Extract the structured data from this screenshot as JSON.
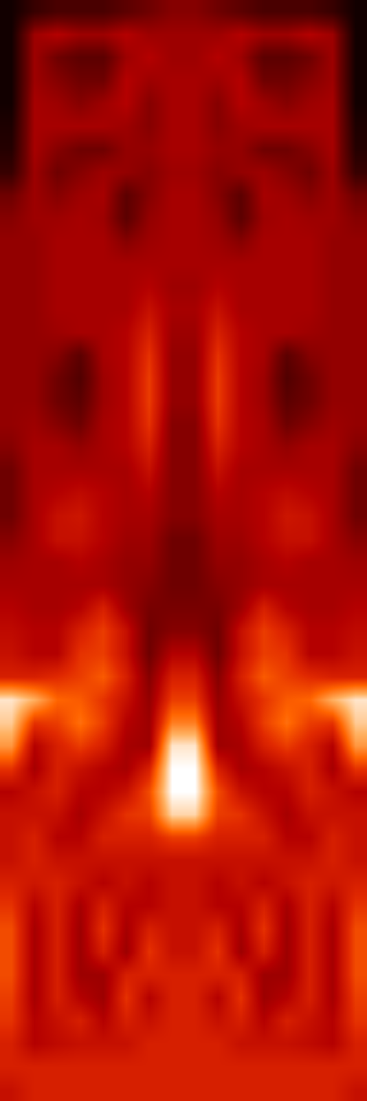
{
  "chart_data": {
    "type": "heatmap",
    "zlim": [
      0,
      1
    ],
    "tick_labels": false,
    "z": [
      [
        0.05,
        0.15,
        0.2,
        0.2,
        0.2,
        0.25,
        0.3,
        0.35,
        0.35,
        0.3,
        0.25,
        0.2,
        0.2,
        0.2,
        0.15,
        0.05
      ],
      [
        0.05,
        0.4,
        0.45,
        0.4,
        0.4,
        0.45,
        0.4,
        0.4,
        0.4,
        0.4,
        0.45,
        0.4,
        0.4,
        0.45,
        0.4,
        0.05
      ],
      [
        0.05,
        0.4,
        0.3,
        0.25,
        0.25,
        0.4,
        0.45,
        0.4,
        0.4,
        0.45,
        0.4,
        0.25,
        0.25,
        0.3,
        0.4,
        0.05
      ],
      [
        0.05,
        0.4,
        0.35,
        0.3,
        0.3,
        0.45,
        0.4,
        0.42,
        0.42,
        0.4,
        0.45,
        0.3,
        0.3,
        0.35,
        0.4,
        0.05
      ],
      [
        0.05,
        0.42,
        0.4,
        0.35,
        0.4,
        0.45,
        0.35,
        0.42,
        0.42,
        0.35,
        0.45,
        0.4,
        0.35,
        0.4,
        0.42,
        0.05
      ],
      [
        0.08,
        0.42,
        0.42,
        0.42,
        0.42,
        0.4,
        0.35,
        0.42,
        0.42,
        0.35,
        0.4,
        0.42,
        0.42,
        0.42,
        0.42,
        0.08
      ],
      [
        0.1,
        0.42,
        0.35,
        0.3,
        0.3,
        0.38,
        0.38,
        0.42,
        0.42,
        0.38,
        0.38,
        0.3,
        0.3,
        0.35,
        0.42,
        0.1
      ],
      [
        0.15,
        0.4,
        0.3,
        0.35,
        0.4,
        0.38,
        0.35,
        0.4,
        0.4,
        0.35,
        0.38,
        0.4,
        0.35,
        0.3,
        0.4,
        0.15
      ],
      [
        0.3,
        0.4,
        0.35,
        0.4,
        0.42,
        0.25,
        0.35,
        0.42,
        0.42,
        0.35,
        0.25,
        0.42,
        0.4,
        0.35,
        0.4,
        0.3
      ],
      [
        0.35,
        0.4,
        0.4,
        0.42,
        0.4,
        0.25,
        0.38,
        0.42,
        0.42,
        0.38,
        0.25,
        0.4,
        0.42,
        0.4,
        0.4,
        0.35
      ],
      [
        0.38,
        0.38,
        0.42,
        0.42,
        0.42,
        0.35,
        0.4,
        0.42,
        0.42,
        0.4,
        0.35,
        0.42,
        0.42,
        0.42,
        0.38,
        0.38
      ],
      [
        0.38,
        0.38,
        0.42,
        0.42,
        0.42,
        0.42,
        0.42,
        0.42,
        0.42,
        0.42,
        0.42,
        0.42,
        0.42,
        0.42,
        0.38,
        0.38
      ],
      [
        0.38,
        0.38,
        0.42,
        0.42,
        0.42,
        0.42,
        0.45,
        0.4,
        0.4,
        0.45,
        0.42,
        0.42,
        0.42,
        0.42,
        0.38,
        0.38
      ],
      [
        0.38,
        0.38,
        0.42,
        0.42,
        0.42,
        0.42,
        0.5,
        0.42,
        0.42,
        0.5,
        0.42,
        0.42,
        0.42,
        0.42,
        0.38,
        0.38
      ],
      [
        0.38,
        0.38,
        0.4,
        0.42,
        0.42,
        0.45,
        0.55,
        0.4,
        0.4,
        0.55,
        0.45,
        0.42,
        0.42,
        0.4,
        0.38,
        0.38
      ],
      [
        0.38,
        0.38,
        0.35,
        0.25,
        0.42,
        0.45,
        0.6,
        0.38,
        0.38,
        0.6,
        0.45,
        0.42,
        0.25,
        0.35,
        0.38,
        0.38
      ],
      [
        0.38,
        0.38,
        0.3,
        0.22,
        0.4,
        0.45,
        0.62,
        0.38,
        0.38,
        0.62,
        0.45,
        0.4,
        0.22,
        0.3,
        0.38,
        0.38
      ],
      [
        0.38,
        0.38,
        0.3,
        0.25,
        0.4,
        0.45,
        0.62,
        0.38,
        0.38,
        0.62,
        0.45,
        0.4,
        0.25,
        0.3,
        0.38,
        0.38
      ],
      [
        0.38,
        0.4,
        0.35,
        0.3,
        0.42,
        0.45,
        0.6,
        0.35,
        0.35,
        0.6,
        0.45,
        0.42,
        0.3,
        0.35,
        0.4,
        0.38
      ],
      [
        0.35,
        0.42,
        0.42,
        0.38,
        0.42,
        0.45,
        0.55,
        0.35,
        0.35,
        0.55,
        0.45,
        0.42,
        0.38,
        0.42,
        0.42,
        0.35
      ],
      [
        0.3,
        0.42,
        0.42,
        0.42,
        0.42,
        0.42,
        0.5,
        0.35,
        0.35,
        0.5,
        0.42,
        0.42,
        0.42,
        0.42,
        0.42,
        0.3
      ],
      [
        0.3,
        0.42,
        0.45,
        0.48,
        0.45,
        0.42,
        0.45,
        0.35,
        0.35,
        0.45,
        0.42,
        0.45,
        0.48,
        0.45,
        0.42,
        0.3
      ],
      [
        0.3,
        0.42,
        0.5,
        0.52,
        0.45,
        0.42,
        0.42,
        0.35,
        0.35,
        0.42,
        0.42,
        0.45,
        0.52,
        0.5,
        0.42,
        0.3
      ],
      [
        0.35,
        0.42,
        0.5,
        0.5,
        0.45,
        0.4,
        0.4,
        0.3,
        0.3,
        0.4,
        0.4,
        0.45,
        0.5,
        0.5,
        0.42,
        0.35
      ],
      [
        0.4,
        0.42,
        0.42,
        0.45,
        0.42,
        0.38,
        0.38,
        0.3,
        0.3,
        0.38,
        0.38,
        0.42,
        0.45,
        0.42,
        0.42,
        0.4
      ],
      [
        0.42,
        0.42,
        0.42,
        0.42,
        0.42,
        0.38,
        0.35,
        0.3,
        0.3,
        0.35,
        0.38,
        0.42,
        0.42,
        0.42,
        0.42,
        0.42
      ],
      [
        0.45,
        0.42,
        0.42,
        0.45,
        0.55,
        0.4,
        0.32,
        0.32,
        0.32,
        0.32,
        0.4,
        0.55,
        0.45,
        0.42,
        0.42,
        0.45
      ],
      [
        0.48,
        0.45,
        0.45,
        0.55,
        0.62,
        0.5,
        0.3,
        0.35,
        0.35,
        0.3,
        0.5,
        0.62,
        0.55,
        0.45,
        0.45,
        0.48
      ],
      [
        0.5,
        0.45,
        0.45,
        0.6,
        0.62,
        0.5,
        0.3,
        0.45,
        0.45,
        0.3,
        0.5,
        0.62,
        0.6,
        0.45,
        0.45,
        0.5
      ],
      [
        0.55,
        0.55,
        0.58,
        0.62,
        0.68,
        0.55,
        0.35,
        0.55,
        0.55,
        0.35,
        0.55,
        0.68,
        0.62,
        0.58,
        0.55,
        0.55
      ],
      [
        0.95,
        0.85,
        0.7,
        0.68,
        0.6,
        0.5,
        0.38,
        0.62,
        0.62,
        0.38,
        0.5,
        0.6,
        0.68,
        0.7,
        0.85,
        0.95
      ],
      [
        0.9,
        0.6,
        0.62,
        0.72,
        0.62,
        0.45,
        0.4,
        0.75,
        0.75,
        0.4,
        0.45,
        0.62,
        0.72,
        0.62,
        0.6,
        0.9
      ],
      [
        0.8,
        0.45,
        0.55,
        0.62,
        0.55,
        0.42,
        0.4,
        0.95,
        0.95,
        0.4,
        0.42,
        0.55,
        0.62,
        0.55,
        0.45,
        0.8
      ],
      [
        0.6,
        0.42,
        0.55,
        0.5,
        0.45,
        0.42,
        0.55,
        1.0,
        1.0,
        0.55,
        0.42,
        0.45,
        0.5,
        0.55,
        0.42,
        0.6
      ],
      [
        0.45,
        0.5,
        0.55,
        0.45,
        0.45,
        0.5,
        0.65,
        1.0,
        1.0,
        0.65,
        0.5,
        0.45,
        0.45,
        0.55,
        0.5,
        0.45
      ],
      [
        0.5,
        0.5,
        0.5,
        0.42,
        0.5,
        0.6,
        0.62,
        0.92,
        0.92,
        0.62,
        0.6,
        0.5,
        0.42,
        0.5,
        0.5,
        0.5
      ],
      [
        0.5,
        0.55,
        0.45,
        0.45,
        0.55,
        0.55,
        0.55,
        0.62,
        0.62,
        0.55,
        0.55,
        0.55,
        0.45,
        0.45,
        0.55,
        0.5
      ],
      [
        0.5,
        0.55,
        0.5,
        0.5,
        0.5,
        0.5,
        0.5,
        0.5,
        0.5,
        0.5,
        0.5,
        0.5,
        0.5,
        0.5,
        0.55,
        0.5
      ],
      [
        0.55,
        0.52,
        0.55,
        0.5,
        0.45,
        0.5,
        0.45,
        0.5,
        0.5,
        0.45,
        0.5,
        0.45,
        0.5,
        0.55,
        0.52,
        0.55
      ],
      [
        0.6,
        0.45,
        0.55,
        0.42,
        0.55,
        0.45,
        0.45,
        0.5,
        0.5,
        0.45,
        0.45,
        0.55,
        0.42,
        0.55,
        0.45,
        0.6
      ],
      [
        0.65,
        0.42,
        0.55,
        0.4,
        0.6,
        0.42,
        0.55,
        0.5,
        0.5,
        0.55,
        0.42,
        0.6,
        0.4,
        0.55,
        0.42,
        0.65
      ],
      [
        0.65,
        0.42,
        0.55,
        0.4,
        0.55,
        0.4,
        0.6,
        0.5,
        0.5,
        0.6,
        0.4,
        0.55,
        0.4,
        0.55,
        0.42,
        0.65
      ],
      [
        0.65,
        0.42,
        0.55,
        0.4,
        0.4,
        0.55,
        0.55,
        0.55,
        0.55,
        0.55,
        0.55,
        0.4,
        0.4,
        0.55,
        0.42,
        0.65
      ],
      [
        0.62,
        0.42,
        0.55,
        0.45,
        0.4,
        0.6,
        0.45,
        0.55,
        0.55,
        0.45,
        0.6,
        0.4,
        0.45,
        0.55,
        0.42,
        0.62
      ],
      [
        0.6,
        0.45,
        0.5,
        0.55,
        0.45,
        0.55,
        0.5,
        0.55,
        0.55,
        0.5,
        0.55,
        0.45,
        0.55,
        0.5,
        0.45,
        0.6
      ],
      [
        0.55,
        0.45,
        0.48,
        0.5,
        0.5,
        0.5,
        0.55,
        0.55,
        0.55,
        0.55,
        0.5,
        0.5,
        0.5,
        0.48,
        0.45,
        0.55
      ],
      [
        0.55,
        0.55,
        0.55,
        0.55,
        0.55,
        0.55,
        0.55,
        0.55,
        0.55,
        0.55,
        0.55,
        0.55,
        0.55,
        0.55,
        0.55,
        0.55
      ],
      [
        0.5,
        0.55,
        0.55,
        0.55,
        0.55,
        0.55,
        0.55,
        0.55,
        0.55,
        0.55,
        0.55,
        0.55,
        0.55,
        0.55,
        0.55,
        0.5
      ]
    ]
  }
}
